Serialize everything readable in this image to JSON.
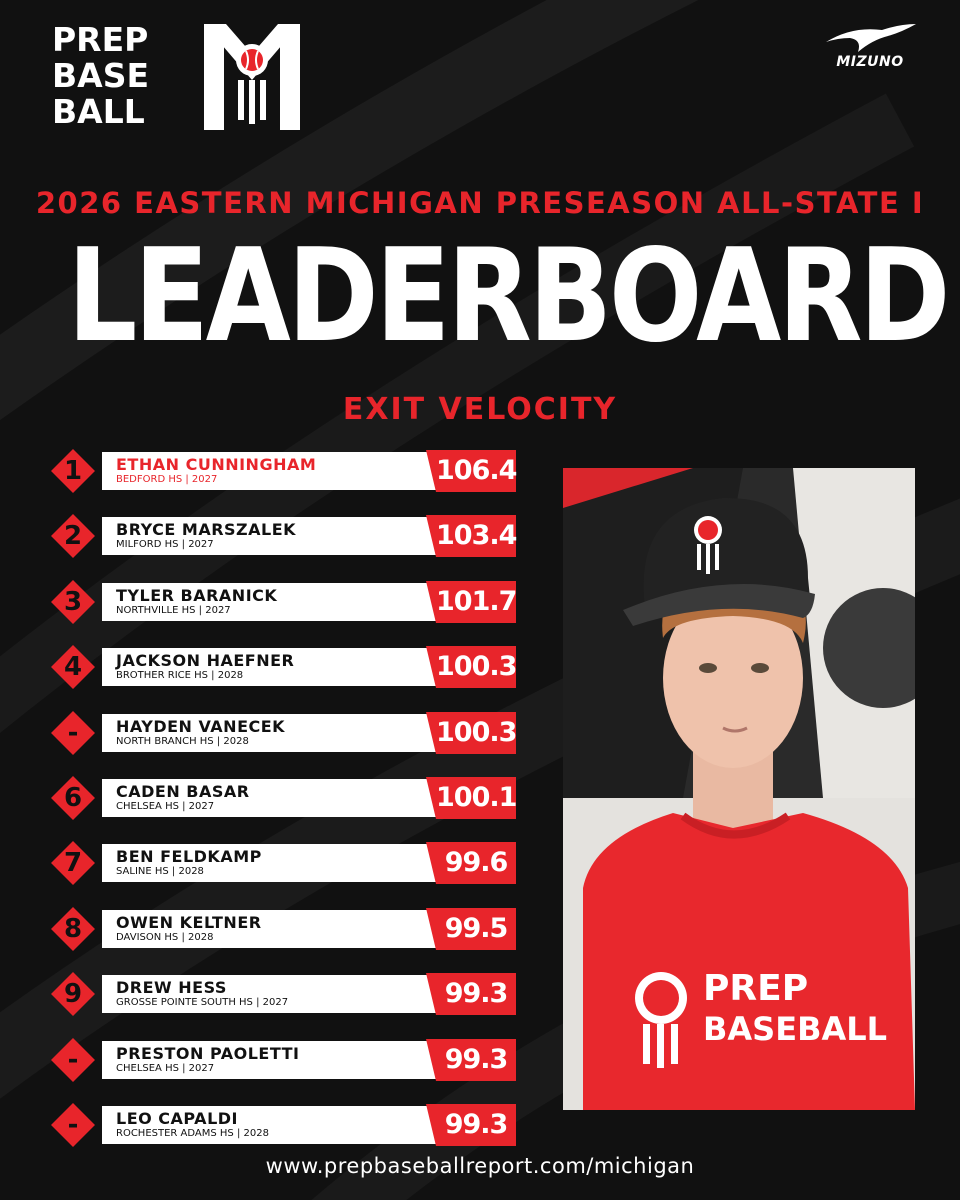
{
  "brand": {
    "logo_lines": [
      "PREP",
      "BASE",
      "BALL"
    ],
    "logo_mark": "MI",
    "sponsor": "MIZUNO"
  },
  "header": {
    "subtitle": "2026 EASTERN MICHIGAN PRESEASON ALL-STATE I",
    "title": "LEADERBOARD",
    "category": "EXIT VELOCITY"
  },
  "leaderboard": [
    {
      "rank": "1",
      "name": "ETHAN CUNNINGHAM",
      "school": "BEDFORD HS | 2027",
      "value": "106.4"
    },
    {
      "rank": "2",
      "name": "BRYCE MARSZALEK",
      "school": "MILFORD HS | 2027",
      "value": "103.4"
    },
    {
      "rank": "3",
      "name": "TYLER BARANICK",
      "school": "NORTHVILLE HS | 2027",
      "value": "101.7"
    },
    {
      "rank": "4",
      "name": "JACKSON HAEFNER",
      "school": "BROTHER RICE HS | 2028",
      "value": "100.3"
    },
    {
      "rank": "-",
      "name": "HAYDEN VANECEK",
      "school": "NORTH BRANCH HS | 2028",
      "value": "100.3"
    },
    {
      "rank": "6",
      "name": "CADEN BASAR",
      "school": "CHELSEA HS | 2027",
      "value": "100.1"
    },
    {
      "rank": "7",
      "name": "BEN FELDKAMP",
      "school": "SALINE HS | 2028",
      "value": "99.6"
    },
    {
      "rank": "8",
      "name": "OWEN KELTNER",
      "school": "DAVISON HS | 2028",
      "value": "99.5"
    },
    {
      "rank": "9",
      "name": "DREW HESS",
      "school": "GROSSE POINTE SOUTH HS | 2027",
      "value": "99.3"
    },
    {
      "rank": "-",
      "name": "PRESTON PAOLETTI",
      "school": "CHELSEA HS | 2027",
      "value": "99.3"
    },
    {
      "rank": "-",
      "name": "LEO CAPALDI",
      "school": "ROCHESTER ADAMS HS | 2028",
      "value": "99.3"
    }
  ],
  "photo": {
    "shirt_lines": [
      "PREP",
      "BASEBALL"
    ]
  },
  "footer": {
    "url": "www.prepbaseballreport.com/michigan"
  },
  "colors": {
    "accent": "#e8252b",
    "background": "#111111",
    "bar": "#ffffff"
  }
}
